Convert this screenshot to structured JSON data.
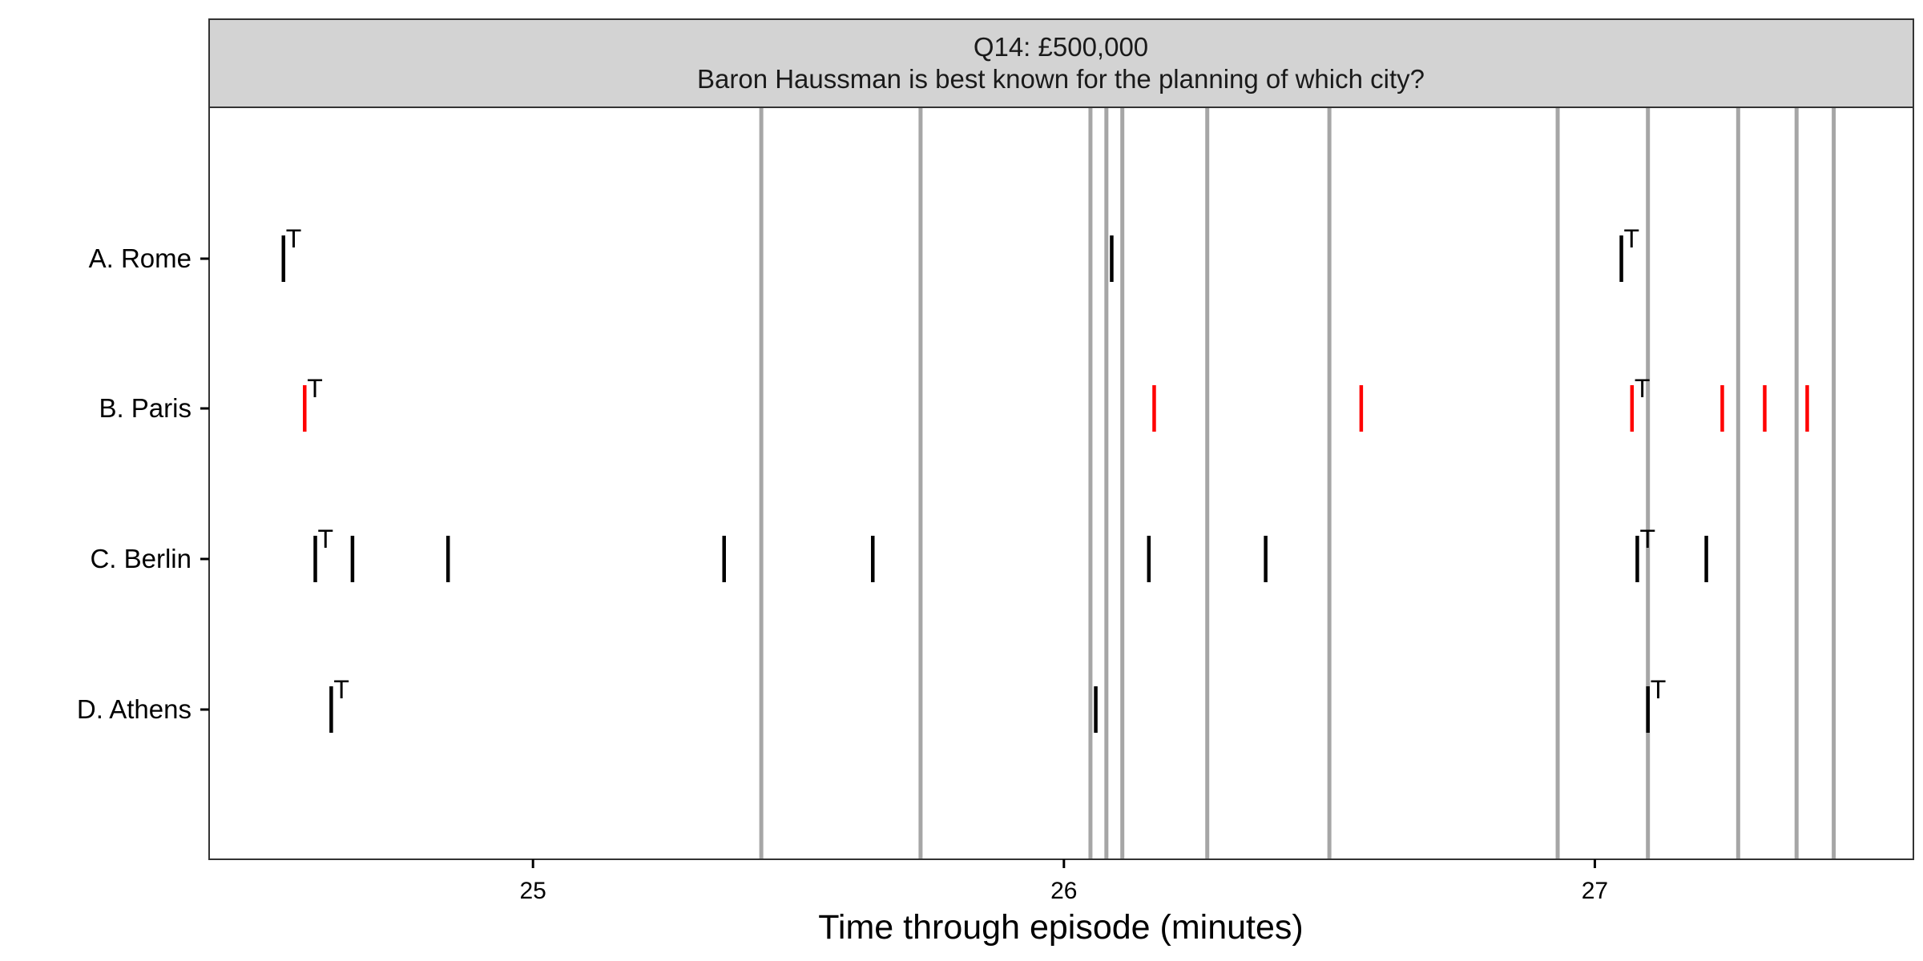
{
  "chart_data": {
    "type": "event-timeline",
    "title": "Q14: £500,000",
    "subtitle": "Baron Haussman is best known for the planning of which city?",
    "xlabel": "Time through episode (minutes)",
    "ylabel": "",
    "xlim": [
      24.39,
      27.6
    ],
    "xticks": [
      25,
      26,
      27
    ],
    "grid": false,
    "categories": [
      "A. Rome",
      "B. Paris",
      "C. Berlin",
      "D. Athens"
    ],
    "vertical_lines": [
      25.43,
      25.73,
      26.05,
      26.08,
      26.11,
      26.27,
      26.5,
      26.93,
      27.1,
      27.27,
      27.38,
      27.45
    ],
    "series": [
      {
        "category": "A. Rome",
        "color": "#000000",
        "events": [
          24.53,
          26.09,
          27.05
        ],
        "t_markers": [
          24.53,
          27.05
        ]
      },
      {
        "category": "B. Paris",
        "color": "#ff0000",
        "events": [
          24.57,
          26.17,
          26.56,
          27.07,
          27.24,
          27.32,
          27.4
        ],
        "t_markers": [
          24.57,
          27.07
        ]
      },
      {
        "category": "C. Berlin",
        "color": "#000000",
        "events": [
          24.59,
          24.66,
          24.84,
          25.36,
          25.64,
          26.16,
          26.38,
          27.08,
          27.21
        ],
        "t_markers": [
          24.59,
          27.08
        ]
      },
      {
        "category": "D. Athens",
        "color": "#000000",
        "events": [
          24.62,
          26.06,
          27.1
        ],
        "t_markers": [
          24.62,
          27.1
        ]
      }
    ],
    "marker_label": "T",
    "colors": {
      "vline": "#a6a6a6",
      "strip_bg": "#d3d3d3",
      "frame": "#333333",
      "axis": "#000000"
    }
  }
}
